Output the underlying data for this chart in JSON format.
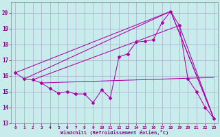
{
  "bg_color": "#c8ecec",
  "grid_color": "#aaaacc",
  "line_color": "#aa00aa",
  "xlabel": "Windchill (Refroidissement éolien,°C)",
  "xlim": [
    -0.5,
    23.5
  ],
  "ylim": [
    13.0,
    20.7
  ],
  "xticks": [
    0,
    1,
    2,
    3,
    4,
    5,
    6,
    7,
    8,
    9,
    10,
    11,
    12,
    13,
    14,
    15,
    16,
    17,
    18,
    19,
    20,
    21,
    22,
    23
  ],
  "yticks": [
    13,
    14,
    15,
    16,
    17,
    18,
    19,
    20
  ],
  "main_series": [
    [
      0,
      16.2
    ],
    [
      1,
      15.8
    ],
    [
      2,
      15.75
    ],
    [
      3,
      15.55
    ],
    [
      4,
      15.2
    ],
    [
      5,
      14.9
    ],
    [
      6,
      15.0
    ],
    [
      7,
      14.85
    ],
    [
      8,
      14.85
    ],
    [
      9,
      14.3
    ],
    [
      10,
      15.1
    ],
    [
      11,
      14.6
    ],
    [
      12,
      17.2
    ],
    [
      13,
      17.4
    ],
    [
      14,
      18.15
    ],
    [
      15,
      18.2
    ],
    [
      16,
      18.3
    ],
    [
      17,
      19.4
    ],
    [
      18,
      20.1
    ],
    [
      19,
      19.2
    ],
    [
      20,
      15.8
    ],
    [
      21,
      15.0
    ],
    [
      22,
      14.0
    ],
    [
      23,
      13.3
    ]
  ],
  "straight_lines": [
    [
      [
        0,
        16.2
      ],
      [
        18,
        20.1
      ],
      [
        23,
        13.3
      ]
    ],
    [
      [
        1,
        15.8
      ],
      [
        18,
        20.1
      ],
      [
        23,
        13.3
      ]
    ],
    [
      [
        2,
        15.75
      ],
      [
        19,
        19.2
      ],
      [
        23,
        13.3
      ]
    ],
    [
      [
        3,
        15.55
      ],
      [
        23,
        15.9
      ]
    ]
  ]
}
